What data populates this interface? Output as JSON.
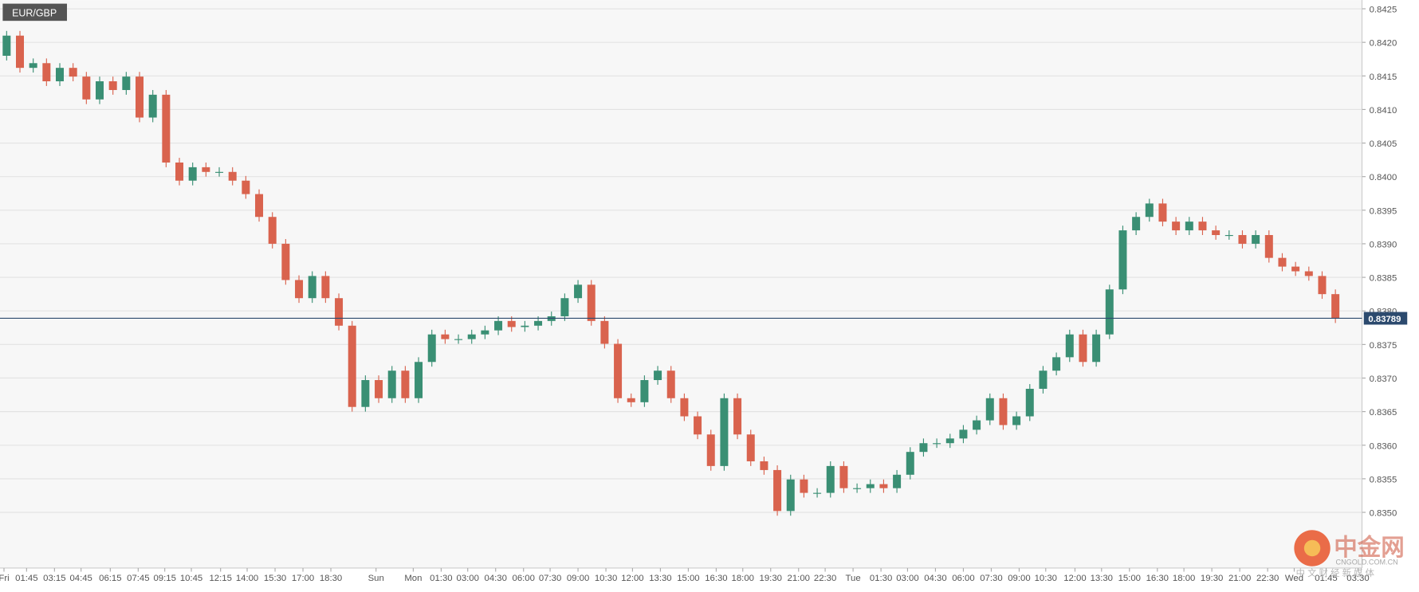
{
  "chart_data": {
    "type": "candlestick",
    "title": "EUR/GBP",
    "up_color": "#3a8f74",
    "down_color": "#d9634e",
    "grid": true,
    "open": [
      0.8418,
      0.8421,
      0.84162,
      0.84169,
      0.84142,
      0.84162,
      0.84149,
      0.84115,
      0.84142,
      0.84129,
      0.84149,
      0.84088,
      0.84122,
      0.84021,
      0.83994,
      0.84014,
      0.84007,
      0.84007,
      0.83994,
      0.83974,
      0.8394,
      0.839,
      0.83846,
      0.83819,
      0.83852,
      0.83819,
      0.83778,
      0.83657,
      0.83697,
      0.8367,
      0.83711,
      0.8367,
      0.83724,
      0.83765,
      0.83758,
      0.83758,
      0.83765,
      0.83771,
      0.83785,
      0.83776,
      0.83778,
      0.83785,
      0.83792,
      0.83819,
      0.83839,
      0.83785,
      0.83751,
      0.8367,
      0.83664,
      0.83697,
      0.83711,
      0.8367,
      0.83643,
      0.83616,
      0.83569,
      0.8367,
      0.83616,
      0.83576,
      0.83563,
      0.83502,
      0.83549,
      0.83529,
      0.83529,
      0.83569,
      0.83536,
      0.83536,
      0.83542,
      0.83536,
      0.83556,
      0.8359,
      0.83603,
      0.83603,
      0.8361,
      0.83623,
      0.83637,
      0.8367,
      0.8363,
      0.83643,
      0.83684,
      0.83711,
      0.83731,
      0.83765,
      0.83724,
      0.83765,
      0.83832,
      0.8392,
      0.8394,
      0.8396,
      0.83933,
      0.8392,
      0.83933,
      0.8392,
      0.83913,
      0.83913,
      0.839,
      0.83913,
      0.83879,
      0.83866,
      0.83859,
      0.83852,
      0.83825
    ],
    "high": [
      0.84217,
      0.84217,
      0.84176,
      0.84176,
      0.84169,
      0.84169,
      0.84156,
      0.84149,
      0.84149,
      0.84156,
      0.84156,
      0.84129,
      0.84129,
      0.84028,
      0.84021,
      0.84021,
      0.84014,
      0.84014,
      0.84001,
      0.83981,
      0.83947,
      0.83907,
      0.83853,
      0.83859,
      0.83859,
      0.83826,
      0.83785,
      0.83704,
      0.83704,
      0.83718,
      0.83718,
      0.83731,
      0.83772,
      0.83772,
      0.83765,
      0.83772,
      0.83778,
      0.83792,
      0.83792,
      0.83785,
      0.83792,
      0.83799,
      0.83826,
      0.83846,
      0.83846,
      0.83792,
      0.83758,
      0.83677,
      0.83704,
      0.83718,
      0.83718,
      0.83677,
      0.8365,
      0.83623,
      0.83677,
      0.83677,
      0.83623,
      0.83583,
      0.8357,
      0.83556,
      0.83556,
      0.83536,
      0.83576,
      0.83576,
      0.83543,
      0.83549,
      0.83549,
      0.83563,
      0.83597,
      0.8361,
      0.8361,
      0.83617,
      0.8363,
      0.83644,
      0.83677,
      0.83677,
      0.8365,
      0.83691,
      0.83718,
      0.83738,
      0.83772,
      0.83772,
      0.83772,
      0.83839,
      0.83927,
      0.83947,
      0.83967,
      0.83967,
      0.8394,
      0.8394,
      0.8394,
      0.83927,
      0.8392,
      0.8392,
      0.8392,
      0.8392,
      0.83886,
      0.83873,
      0.83866,
      0.83859,
      0.83832
    ],
    "low": [
      0.84173,
      0.84155,
      0.84155,
      0.84135,
      0.84135,
      0.84142,
      0.84108,
      0.84108,
      0.84122,
      0.84122,
      0.84081,
      0.84081,
      0.84014,
      0.83987,
      0.83987,
      0.84,
      0.84,
      0.83987,
      0.83967,
      0.83933,
      0.83893,
      0.83839,
      0.83812,
      0.83812,
      0.83812,
      0.83771,
      0.8365,
      0.8365,
      0.83663,
      0.83663,
      0.83663,
      0.83663,
      0.83717,
      0.83751,
      0.83751,
      0.83751,
      0.83758,
      0.83764,
      0.83769,
      0.83769,
      0.83771,
      0.83778,
      0.83785,
      0.83812,
      0.83778,
      0.83744,
      0.83663,
      0.83657,
      0.83657,
      0.8369,
      0.83663,
      0.83636,
      0.83609,
      0.83562,
      0.83562,
      0.83609,
      0.83569,
      0.83556,
      0.83495,
      0.83495,
      0.83522,
      0.83522,
      0.83522,
      0.83529,
      0.83529,
      0.83529,
      0.83529,
      0.83529,
      0.83549,
      0.83583,
      0.83596,
      0.83596,
      0.83603,
      0.83616,
      0.8363,
      0.83623,
      0.83623,
      0.83636,
      0.83677,
      0.83704,
      0.83724,
      0.83717,
      0.83717,
      0.83758,
      0.83825,
      0.83913,
      0.83933,
      0.83926,
      0.83913,
      0.83913,
      0.83913,
      0.83906,
      0.83906,
      0.83893,
      0.83893,
      0.83872,
      0.83859,
      0.83852,
      0.83845,
      0.83818,
      0.83782
    ],
    "close": [
      0.8421,
      0.84162,
      0.84169,
      0.84142,
      0.84162,
      0.84149,
      0.84115,
      0.84142,
      0.84129,
      0.84149,
      0.84088,
      0.84122,
      0.84021,
      0.83994,
      0.84014,
      0.84007,
      0.84007,
      0.83994,
      0.83974,
      0.8394,
      0.839,
      0.83846,
      0.83819,
      0.83852,
      0.83819,
      0.83778,
      0.83657,
      0.83697,
      0.8367,
      0.83711,
      0.8367,
      0.83724,
      0.83765,
      0.83758,
      0.83758,
      0.83765,
      0.83771,
      0.83785,
      0.83776,
      0.83778,
      0.83785,
      0.83792,
      0.83819,
      0.83839,
      0.83785,
      0.83751,
      0.8367,
      0.83664,
      0.83697,
      0.83711,
      0.8367,
      0.83643,
      0.83616,
      0.83569,
      0.8367,
      0.83616,
      0.83576,
      0.83563,
      0.83502,
      0.83549,
      0.83529,
      0.83529,
      0.83569,
      0.83536,
      0.83536,
      0.83542,
      0.83536,
      0.83556,
      0.8359,
      0.83603,
      0.83603,
      0.8361,
      0.83623,
      0.83637,
      0.8367,
      0.8363,
      0.83643,
      0.83684,
      0.83711,
      0.83731,
      0.83765,
      0.83724,
      0.83765,
      0.83832,
      0.8392,
      0.8394,
      0.8396,
      0.83933,
      0.8392,
      0.83933,
      0.8392,
      0.83913,
      0.83913,
      0.839,
      0.83913,
      0.83879,
      0.83866,
      0.83859,
      0.83852,
      0.83825,
      0.83789
    ],
    "last_price": 0.83789,
    "xlim": [
      0,
      102.5
    ],
    "ylim": [
      0.83417,
      0.84263
    ],
    "yticks": [
      {
        "value": 0.8425,
        "label": "0.8425"
      },
      {
        "value": 0.842,
        "label": "0.8420"
      },
      {
        "value": 0.8415,
        "label": "0.8415"
      },
      {
        "value": 0.841,
        "label": "0.8410"
      },
      {
        "value": 0.8405,
        "label": "0.8405"
      },
      {
        "value": 0.84,
        "label": "0.8400"
      },
      {
        "value": 0.8395,
        "label": "0.8395"
      },
      {
        "value": 0.839,
        "label": "0.8390"
      },
      {
        "value": 0.8385,
        "label": "0.8385"
      },
      {
        "value": 0.838,
        "label": "0.8380"
      },
      {
        "value": 0.8375,
        "label": "0.8375"
      },
      {
        "value": 0.837,
        "label": "0.8370"
      },
      {
        "value": 0.8365,
        "label": "0.8365"
      },
      {
        "value": 0.836,
        "label": "0.8360"
      },
      {
        "value": 0.8355,
        "label": "0.8355"
      },
      {
        "value": 0.835,
        "label": "0.8350"
      }
    ],
    "xticks": [
      {
        "value": 0.3,
        "label": "Fri"
      },
      {
        "value": 2.0,
        "label": "01:45"
      },
      {
        "value": 4.1,
        "label": "03:15"
      },
      {
        "value": 6.1,
        "label": "04:45"
      },
      {
        "value": 8.3,
        "label": "06:15"
      },
      {
        "value": 10.4,
        "label": "07:45"
      },
      {
        "value": 12.4,
        "label": "09:15"
      },
      {
        "value": 14.4,
        "label": "10:45"
      },
      {
        "value": 16.6,
        "label": "12:15"
      },
      {
        "value": 18.6,
        "label": "14:00"
      },
      {
        "value": 20.7,
        "label": "15:30"
      },
      {
        "value": 22.8,
        "label": "17:00"
      },
      {
        "value": 24.9,
        "label": "18:30"
      },
      {
        "value": 28.3,
        "label": "Sun"
      },
      {
        "value": 31.1,
        "label": "Mon"
      },
      {
        "value": 33.2,
        "label": "01:30"
      },
      {
        "value": 35.2,
        "label": "03:00"
      },
      {
        "value": 37.3,
        "label": "04:30"
      },
      {
        "value": 39.4,
        "label": "06:00"
      },
      {
        "value": 41.4,
        "label": "07:30"
      },
      {
        "value": 43.5,
        "label": "09:00"
      },
      {
        "value": 45.6,
        "label": "10:30"
      },
      {
        "value": 47.6,
        "label": "12:00"
      },
      {
        "value": 49.7,
        "label": "13:30"
      },
      {
        "value": 51.8,
        "label": "15:00"
      },
      {
        "value": 53.9,
        "label": "16:30"
      },
      {
        "value": 55.9,
        "label": "18:00"
      },
      {
        "value": 58.0,
        "label": "19:30"
      },
      {
        "value": 60.1,
        "label": "21:00"
      },
      {
        "value": 62.1,
        "label": "22:30"
      },
      {
        "value": 64.2,
        "label": "Tue"
      },
      {
        "value": 66.3,
        "label": "01:30"
      },
      {
        "value": 68.3,
        "label": "03:00"
      },
      {
        "value": 70.4,
        "label": "04:30"
      },
      {
        "value": 72.5,
        "label": "06:00"
      },
      {
        "value": 74.6,
        "label": "07:30"
      },
      {
        "value": 76.7,
        "label": "09:00"
      },
      {
        "value": 78.7,
        "label": "10:30"
      },
      {
        "value": 80.9,
        "label": "12:00"
      },
      {
        "value": 82.9,
        "label": "13:30"
      },
      {
        "value": 85.0,
        "label": "15:00"
      },
      {
        "value": 87.1,
        "label": "16:30"
      },
      {
        "value": 89.1,
        "label": "18:00"
      },
      {
        "value": 91.2,
        "label": "19:30"
      },
      {
        "value": 93.3,
        "label": "21:00"
      },
      {
        "value": 95.4,
        "label": "22:30"
      },
      {
        "value": 97.4,
        "label": "Wed"
      },
      {
        "value": 99.8,
        "label": "01:45"
      },
      {
        "value": 102.2,
        "label": "03:30"
      }
    ]
  },
  "watermark": {
    "brand": "中金网",
    "site": "CNGOLD.COM.CN",
    "slogan": "中 文 财 经 新 媒 体"
  }
}
